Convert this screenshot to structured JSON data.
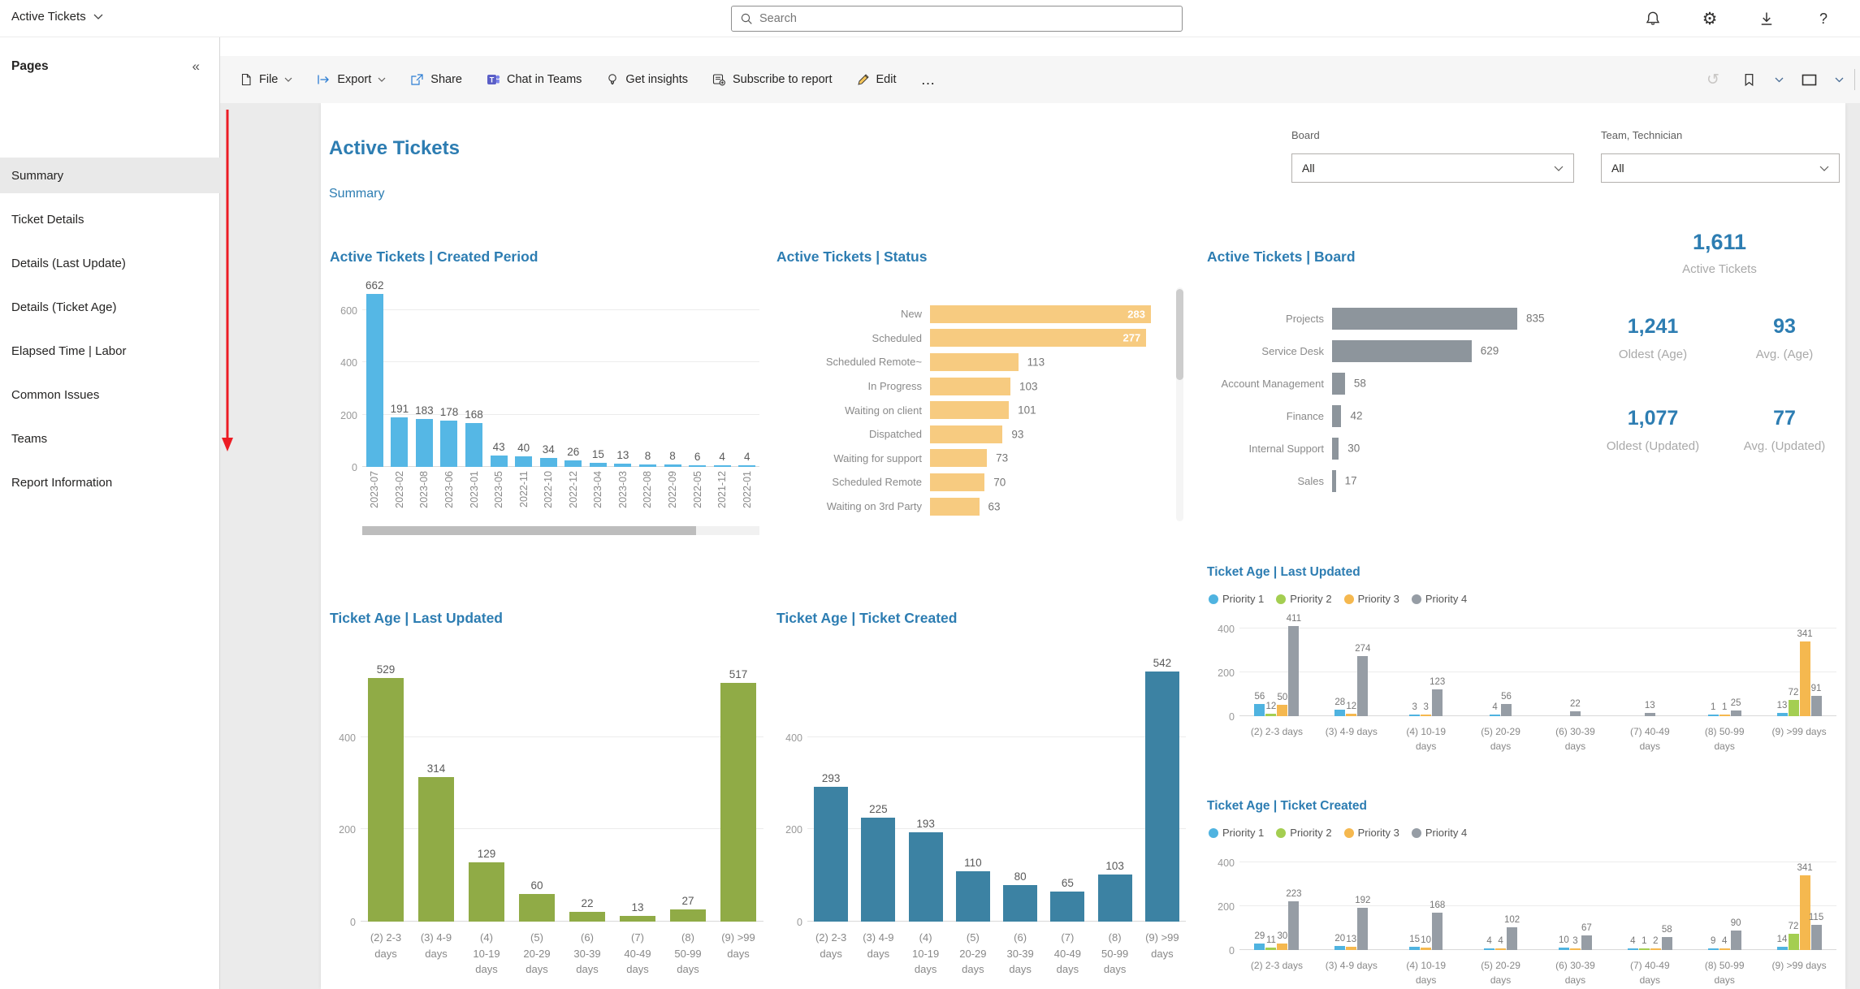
{
  "header": {
    "app_title": "Active Tickets",
    "search_placeholder": "Search"
  },
  "header_icons": [
    "notifications",
    "settings",
    "download",
    "help"
  ],
  "toolbar": {
    "file": "File",
    "export": "Export",
    "share": "Share",
    "chat": "Chat in Teams",
    "insights": "Get insights",
    "subscribe": "Subscribe to report",
    "edit": "Edit",
    "more": "…"
  },
  "sidebar": {
    "title": "Pages",
    "items": [
      "Summary",
      "Ticket Details",
      "Details (Last Update)",
      "Details (Ticket Age)",
      "Elapsed Time | Labor",
      "Common Issues",
      "Teams",
      "Report Information"
    ],
    "selected_index": 0
  },
  "report": {
    "title": "Active Tickets",
    "subtitle": "Summary"
  },
  "filters": {
    "board_label": "Board",
    "board_value": "All",
    "team_label": "Team, Technician",
    "team_value": "All"
  },
  "kpis": {
    "main": {
      "value": "1,611",
      "label": "Active Tickets"
    },
    "cells": [
      {
        "value": "1,241",
        "label": "Oldest (Age)"
      },
      {
        "value": "93",
        "label": "Avg. (Age)"
      },
      {
        "value": "1,077",
        "label": "Oldest (Updated)"
      },
      {
        "value": "77",
        "label": "Avg. (Updated)"
      }
    ]
  },
  "colors": {
    "title_blue": "#2d7db2",
    "sky": "#55b7e5",
    "orange_light": "#f7cb80",
    "gray_bar": "#8d959c",
    "olive_green": "#90ab46",
    "steel_blue": "#3c82a3",
    "priority1": "#4fb3e0",
    "priority2": "#a4ce51",
    "priority3": "#f5b84f",
    "priority4": "#969da5",
    "red_annotation": "#ec1c24"
  },
  "chart_data": [
    {
      "id": "created_period",
      "type": "bar",
      "title": "Active Tickets | Created Period",
      "categories": [
        "2023-07",
        "2023-02",
        "2023-08",
        "2023-06",
        "2023-01",
        "2023-05",
        "2022-11",
        "2022-10",
        "2022-12",
        "2023-04",
        "2023-03",
        "2022-08",
        "2022-09",
        "2022-05",
        "2021-12",
        "2022-01"
      ],
      "values": [
        662,
        191,
        183,
        178,
        168,
        43,
        40,
        34,
        26,
        15,
        13,
        8,
        8,
        6,
        4,
        4
      ],
      "ylim": [
        0,
        700
      ],
      "yticks": [
        0,
        200,
        400,
        600
      ],
      "bar_color": "#55b7e5",
      "grid": true,
      "has_h_scrollbar": true
    },
    {
      "id": "status",
      "type": "hbar",
      "title": "Active Tickets | Status",
      "categories": [
        "New",
        "Scheduled",
        "Scheduled Remote~",
        "In Progress",
        "Waiting on client",
        "Dispatched",
        "Waiting for support",
        "Scheduled Remote",
        "Waiting on 3rd Party"
      ],
      "values": [
        283,
        277,
        113,
        103,
        101,
        93,
        73,
        70,
        63
      ],
      "xlim": [
        0,
        283
      ],
      "bar_color": "#f7cb80",
      "inside_label_count": 2,
      "has_v_scrollbar": true
    },
    {
      "id": "board",
      "type": "hbar",
      "title": "Active Tickets | Board",
      "categories": [
        "Projects",
        "Service Desk",
        "Account Management",
        "Finance",
        "Internal Support",
        "Sales"
      ],
      "values": [
        835,
        629,
        58,
        42,
        30,
        17
      ],
      "xlim": [
        0,
        835
      ],
      "bar_color": "#8d959c",
      "inside_label_count": 0
    },
    {
      "id": "ticket_age_last_updated",
      "type": "bar",
      "title": "Ticket Age | Last Updated",
      "categories": [
        "(2) 2-3\ndays",
        "(3) 4-9\ndays",
        "(4)\n10-19\ndays",
        "(5)\n20-29\ndays",
        "(6)\n30-39\ndays",
        "(7)\n40-49\ndays",
        "(8)\n50-99\ndays",
        "(9) >99\ndays"
      ],
      "values": [
        529,
        314,
        129,
        60,
        22,
        13,
        27,
        517
      ],
      "ylim": [
        0,
        560
      ],
      "yticks": [
        0,
        200,
        400
      ],
      "bar_color": "#90ab46",
      "grid": true
    },
    {
      "id": "ticket_age_ticket_created",
      "type": "bar",
      "title": "Ticket Age | Ticket Created",
      "categories": [
        "(2) 2-3\ndays",
        "(3) 4-9\ndays",
        "(4)\n10-19\ndays",
        "(5)\n20-29\ndays",
        "(6)\n30-39\ndays",
        "(7)\n40-49\ndays",
        "(8)\n50-99\ndays",
        "(9) >99\ndays"
      ],
      "values": [
        293,
        225,
        193,
        110,
        80,
        65,
        103,
        542
      ],
      "ylim": [
        0,
        560
      ],
      "yticks": [
        0,
        200,
        400
      ],
      "bar_color": "#3c82a3",
      "grid": true
    },
    {
      "id": "ticket_age_last_updated_by_priority",
      "type": "clustered",
      "title": "Ticket Age | Last Updated",
      "series": [
        {
          "name": "Priority 1",
          "color": "#4fb3e0"
        },
        {
          "name": "Priority 2",
          "color": "#a4ce51"
        },
        {
          "name": "Priority 3",
          "color": "#f5b84f"
        },
        {
          "name": "Priority 4",
          "color": "#969da5"
        }
      ],
      "categories": [
        "(2) 2-3 days",
        "(3) 4-9 days",
        "(4) 10-19\ndays",
        "(5) 20-29\ndays",
        "(6) 30-39\ndays",
        "(7) 40-49\ndays",
        "(8) 50-99\ndays",
        "(9) >99 days"
      ],
      "values": [
        [
          56,
          12,
          50,
          411
        ],
        [
          28,
          null,
          12,
          274
        ],
        [
          3,
          null,
          3,
          123
        ],
        [
          4,
          null,
          null,
          56
        ],
        [
          null,
          null,
          null,
          22
        ],
        [
          null,
          null,
          null,
          13
        ],
        [
          1,
          null,
          1,
          25
        ],
        [
          13,
          72,
          341,
          91
        ]
      ],
      "ylim": [
        0,
        450
      ],
      "yticks": [
        0,
        200,
        400
      ],
      "legend_position": "top"
    },
    {
      "id": "ticket_age_ticket_created_by_priority",
      "type": "clustered",
      "title": "Ticket Age | Ticket Created",
      "series": [
        {
          "name": "Priority 1",
          "color": "#4fb3e0"
        },
        {
          "name": "Priority 2",
          "color": "#a4ce51"
        },
        {
          "name": "Priority 3",
          "color": "#f5b84f"
        },
        {
          "name": "Priority 4",
          "color": "#969da5"
        }
      ],
      "categories": [
        "(2) 2-3 days",
        "(3) 4-9 days",
        "(4) 10-19\ndays",
        "(5) 20-29\ndays",
        "(6) 30-39\ndays",
        "(7) 40-49\ndays",
        "(8) 50-99\ndays",
        "(9) >99 days"
      ],
      "values": [
        [
          29,
          11,
          30,
          223
        ],
        [
          20,
          null,
          13,
          192
        ],
        [
          15,
          null,
          10,
          168
        ],
        [
          4,
          null,
          4,
          102
        ],
        [
          10,
          null,
          3,
          67
        ],
        [
          4,
          1,
          2,
          58
        ],
        [
          9,
          null,
          4,
          90
        ],
        [
          14,
          72,
          341,
          115
        ]
      ],
      "ylim": [
        0,
        450
      ],
      "yticks": [
        0,
        200,
        400
      ],
      "legend_position": "top"
    }
  ]
}
